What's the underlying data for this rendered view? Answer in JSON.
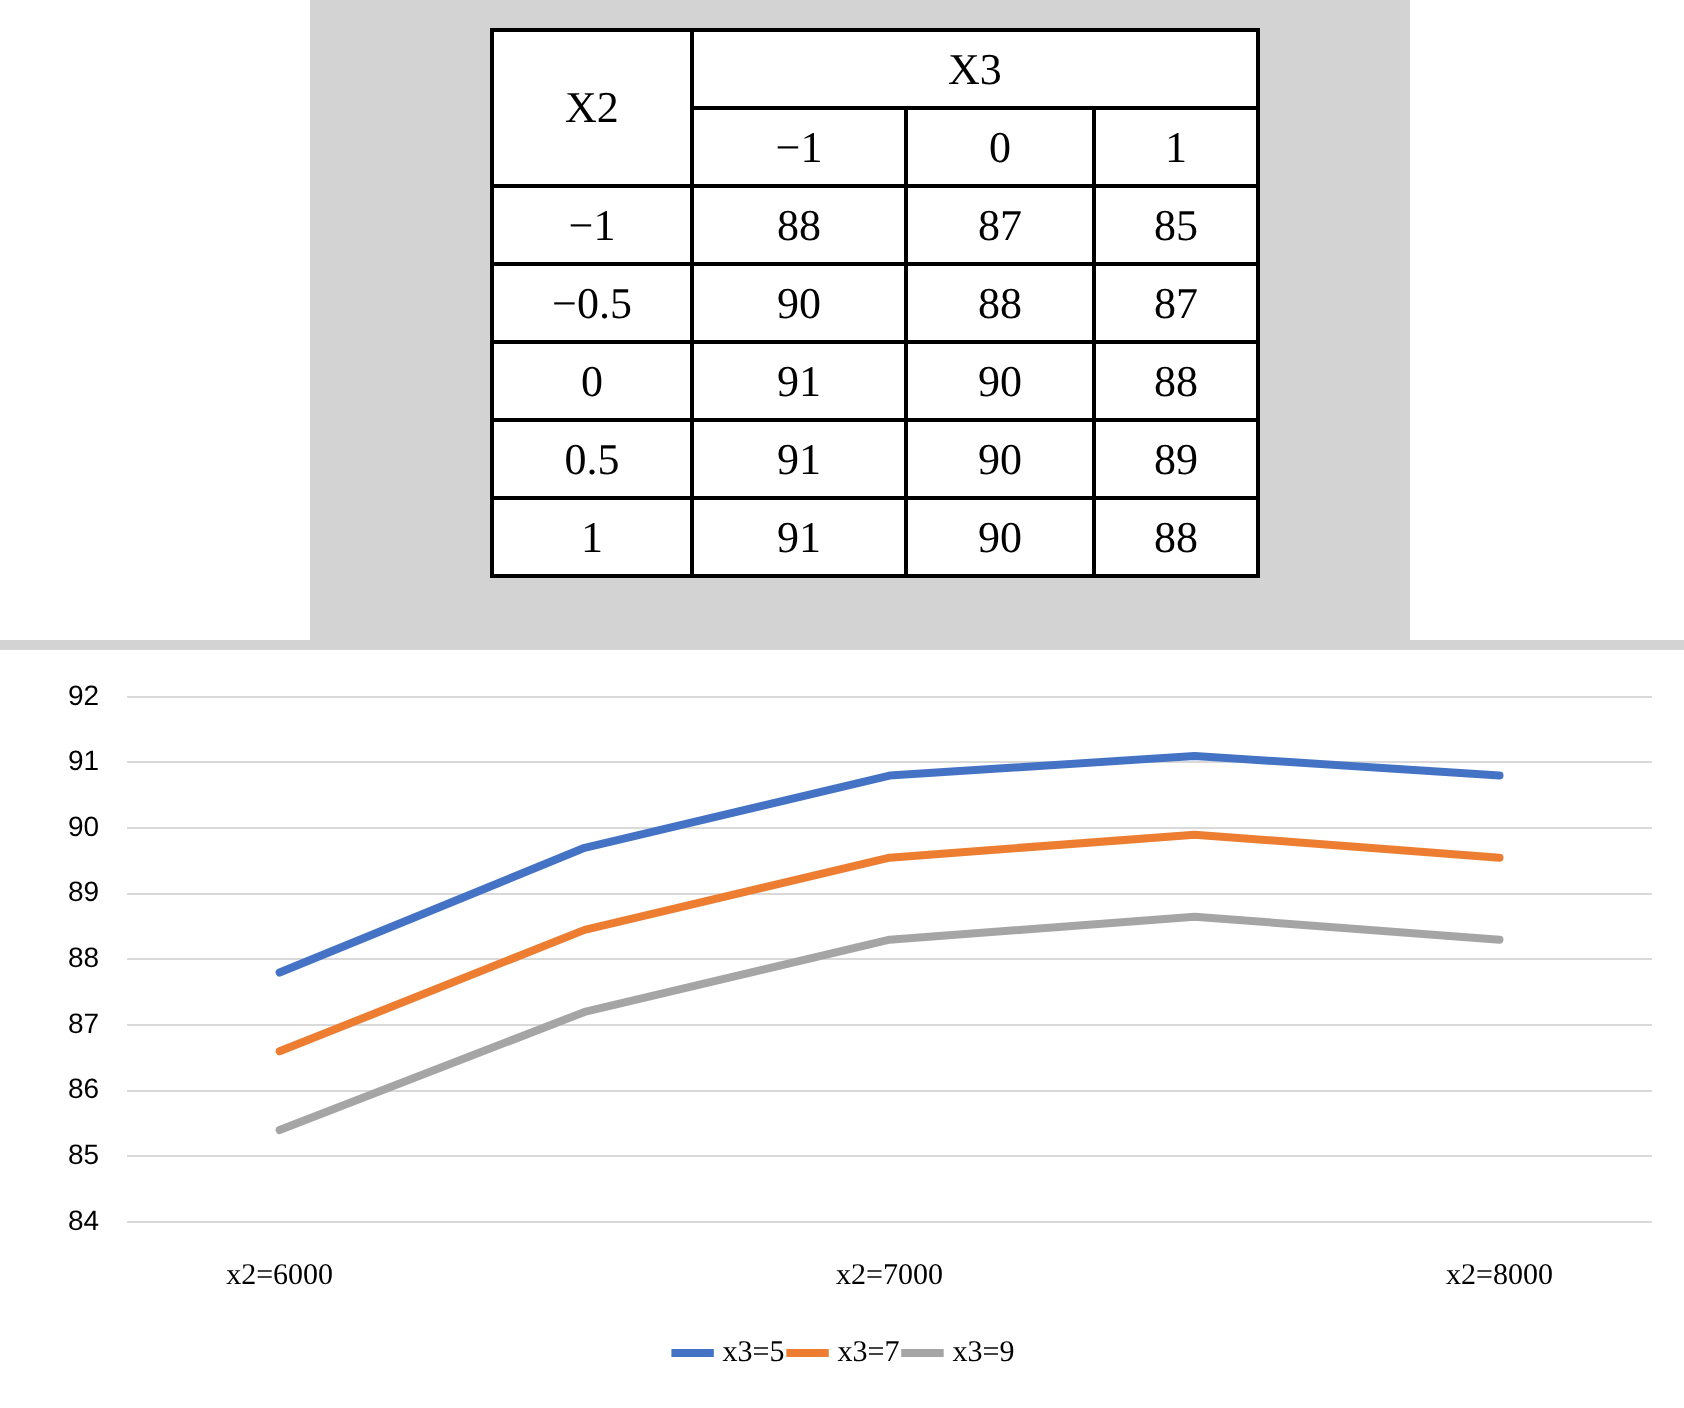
{
  "chart_data": [
    {
      "type": "heatmap",
      "data_labels": true,
      "xlabel": "X3",
      "ylabel": "X2",
      "categories": [
        "−1",
        "0",
        "1"
      ],
      "y_categories": [
        "−1",
        "−0.5",
        "0",
        "0.5",
        "1"
      ],
      "cells": [
        [
          88,
          87,
          85
        ],
        [
          90,
          88,
          87
        ],
        [
          91,
          90,
          88
        ],
        [
          91,
          90,
          89
        ],
        [
          91,
          90,
          88
        ]
      ]
    },
    {
      "type": "line",
      "categories": [
        "x2=6000",
        null,
        "x2=7000",
        null,
        "x2=8000"
      ],
      "series": [
        {
          "name": "x3=5",
          "color": "#4472c4",
          "values": [
            87.8,
            89.7,
            90.8,
            91.1,
            90.8
          ]
        },
        {
          "name": "x3=7",
          "color": "#ed7d31",
          "values": [
            86.6,
            88.45,
            89.55,
            89.9,
            89.55
          ]
        },
        {
          "name": "x3=9",
          "color": "#a5a5a5",
          "values": [
            85.4,
            87.2,
            88.3,
            88.65,
            88.3
          ]
        }
      ],
      "ylim": [
        84,
        92
      ],
      "yticks": [
        84,
        85,
        86,
        87,
        88,
        89,
        90,
        91,
        92
      ],
      "grid": "y",
      "legend": "bottom"
    }
  ]
}
